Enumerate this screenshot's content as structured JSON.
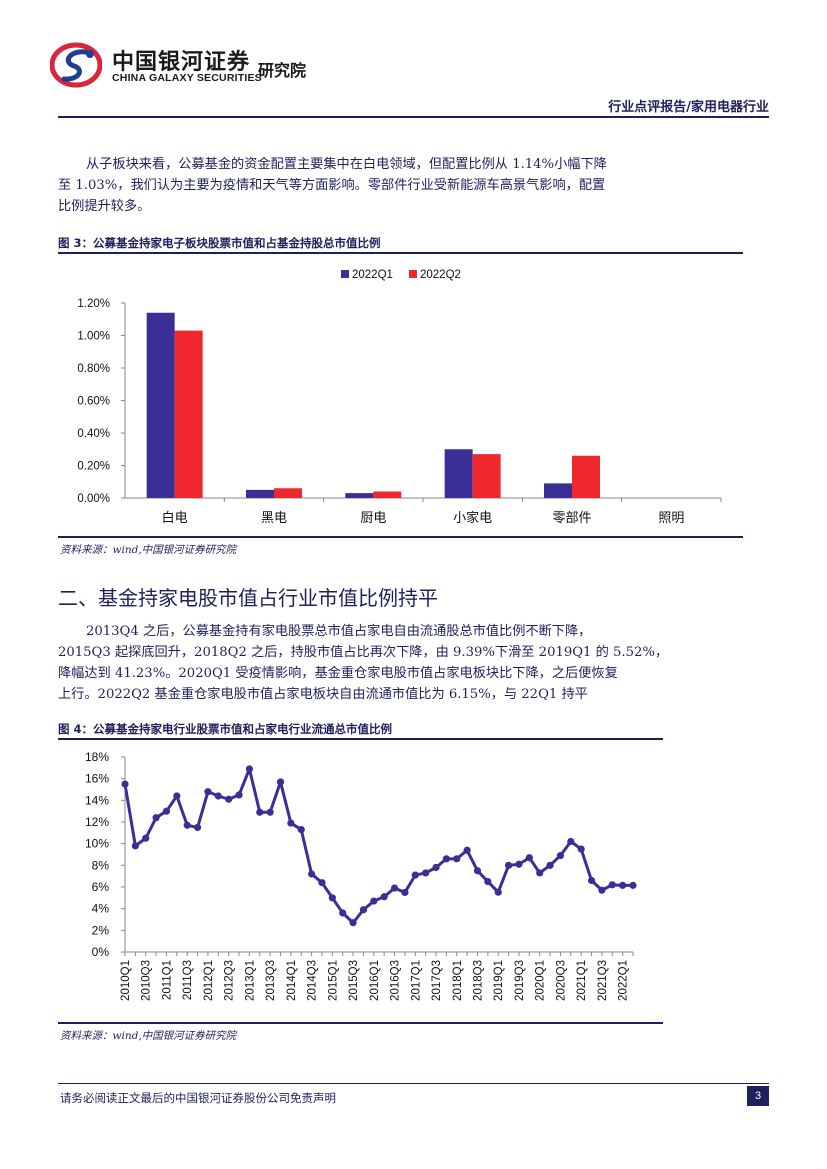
{
  "header": {
    "logo_cn": "中国银河证券",
    "logo_en": "CHINA GALAXY SECURITIES",
    "institute": "研究院",
    "report_type": "行业点评报告/家用电器行业"
  },
  "intro_paragraph": [
    "从子板块来看，公募基金的资金配置主要集中在白电领域，但配置比例从 1.14%小幅下降",
    "至 1.03%，我们认为主要为疫情和天气等方面影响。零部件行业受新能源车高景气影响，配置",
    "比例提升较多。"
  ],
  "figure3": {
    "title": "图 3：公募基金持家电子板块股票市值和占基金持股总市值比例",
    "source": "资料来源：wind,中国银河证券研究院"
  },
  "section2": {
    "title": "二、基金持家电股市值占行业市值比例持平",
    "paragraph": [
      "2013Q4 之后，公募基金持有家电股票总市值占家电自由流通股总市值比例不断下降，",
      "2015Q3 起探底回升，2018Q2 之后，持股市值占比再次下降，由 9.39%下滑至 2019Q1 的 5.52%，",
      "降幅达到 41.23%。2020Q1 受疫情影响，基金重仓家电股市值占家电板块比下降，之后便恢复",
      "上行。2022Q2 基金重仓家电股市值占家电板块自由流通市值比为 6.15%，与 22Q1 持平"
    ]
  },
  "figure4": {
    "title": "图 4：公募基金持家电行业股票市值和占家电行业流通总市值比例",
    "source": "资料来源：wind,中国银河证券研究院"
  },
  "footer": {
    "disclaimer": "请务必阅读正文最后的中国银河证券股份公司免责声明",
    "page": "3"
  },
  "colors": {
    "navy": "#1f1f5c",
    "series_q1": "#3a2f96",
    "series_q2": "#f0282d",
    "line": "#3a2f96",
    "logo_red": "#d7263d"
  },
  "chart_data": [
    {
      "type": "bar",
      "categories": [
        "白电",
        "黑电",
        "厨电",
        "小家电",
        "零部件",
        "照明"
      ],
      "series": [
        {
          "name": "2022Q1",
          "values": [
            0.0114,
            0.0005,
            0.0003,
            0.003,
            0.0009,
            0.0
          ]
        },
        {
          "name": "2022Q2",
          "values": [
            0.0103,
            0.0006,
            0.0004,
            0.0027,
            0.0026,
            0.0
          ]
        }
      ],
      "ylim": [
        0,
        0.012
      ],
      "yticks": [
        "0.00%",
        "0.20%",
        "0.40%",
        "0.60%",
        "0.80%",
        "1.00%",
        "1.20%"
      ],
      "legend": "top-center",
      "grid": false
    },
    {
      "type": "line",
      "x": [
        "2010Q1",
        "2010Q2",
        "2010Q3",
        "2010Q4",
        "2011Q1",
        "2011Q2",
        "2011Q3",
        "2011Q4",
        "2012Q1",
        "2012Q2",
        "2012Q3",
        "2012Q4",
        "2013Q1",
        "2013Q2",
        "2013Q3",
        "2013Q4",
        "2014Q1",
        "2014Q2",
        "2014Q3",
        "2014Q4",
        "2015Q1",
        "2015Q2",
        "2015Q3",
        "2015Q4",
        "2016Q1",
        "2016Q2",
        "2016Q3",
        "2016Q4",
        "2017Q1",
        "2017Q2",
        "2017Q3",
        "2017Q4",
        "2018Q1",
        "2018Q2",
        "2018Q3",
        "2018Q4",
        "2019Q1",
        "2019Q2",
        "2019Q3",
        "2019Q4",
        "2020Q1",
        "2020Q2",
        "2020Q3",
        "2020Q4",
        "2021Q1",
        "2021Q2",
        "2021Q3",
        "2021Q4",
        "2022Q1",
        "2022Q2"
      ],
      "xticks": [
        "2010Q1",
        "2010Q3",
        "2011Q1",
        "2011Q3",
        "2012Q1",
        "2012Q3",
        "2013Q1",
        "2013Q3",
        "2014Q1",
        "2014Q3",
        "2015Q1",
        "2015Q3",
        "2016Q1",
        "2016Q3",
        "2017Q1",
        "2017Q3",
        "2018Q1",
        "2018Q3",
        "2019Q1",
        "2019Q3",
        "2020Q1",
        "2020Q3",
        "2021Q1",
        "2021Q3",
        "2022Q1"
      ],
      "y": [
        0.155,
        0.098,
        0.105,
        0.124,
        0.13,
        0.144,
        0.117,
        0.115,
        0.148,
        0.144,
        0.141,
        0.145,
        0.169,
        0.129,
        0.129,
        0.157,
        0.119,
        0.113,
        0.072,
        0.064,
        0.05,
        0.036,
        0.027,
        0.039,
        0.047,
        0.051,
        0.059,
        0.055,
        0.071,
        0.073,
        0.078,
        0.086,
        0.086,
        0.0939,
        0.075,
        0.065,
        0.0552,
        0.08,
        0.081,
        0.087,
        0.073,
        0.08,
        0.089,
        0.102,
        0.095,
        0.066,
        0.057,
        0.062,
        0.0615,
        0.0615
      ],
      "ylim": [
        0,
        0.18
      ],
      "yticks": [
        "0%",
        "2%",
        "4%",
        "6%",
        "8%",
        "10%",
        "12%",
        "14%",
        "16%",
        "18%"
      ],
      "grid": false
    }
  ]
}
